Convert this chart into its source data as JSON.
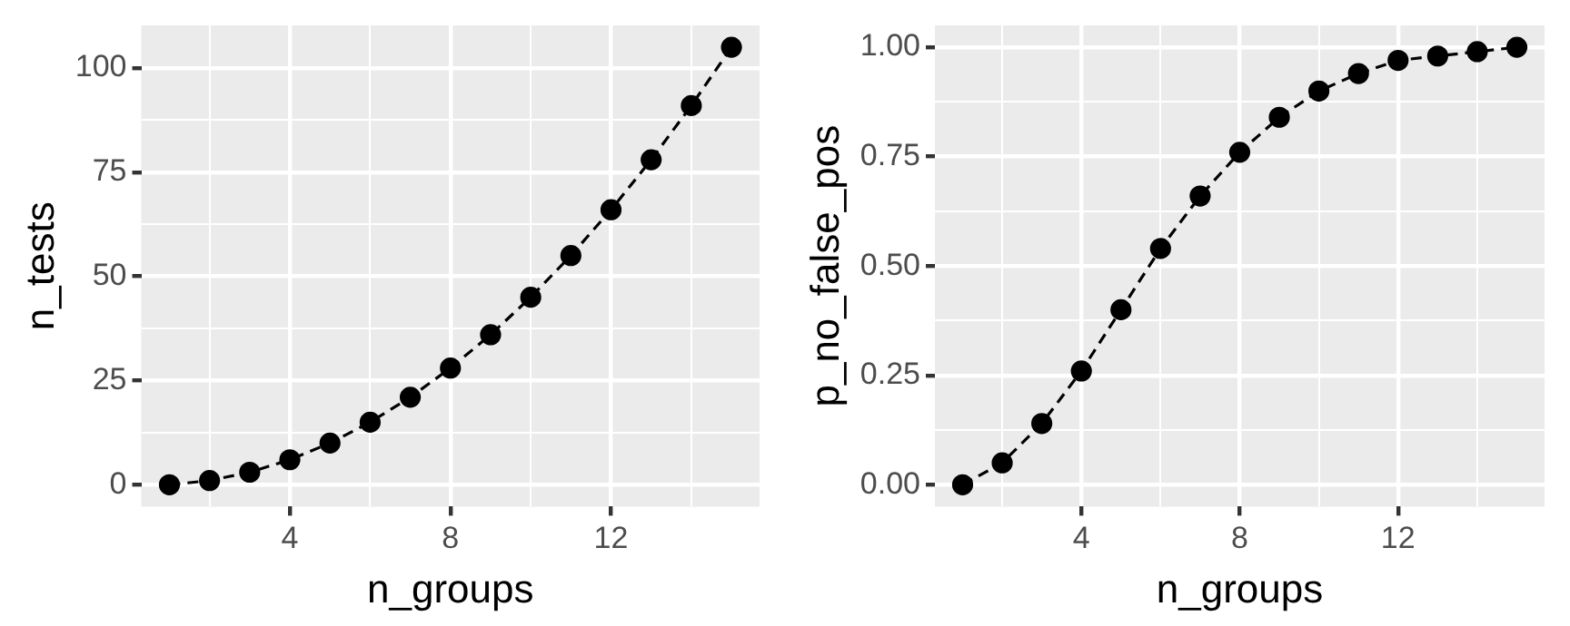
{
  "chart_data": [
    {
      "type": "line",
      "xlabel": "n_groups",
      "ylabel": "n_tests",
      "marker": "circle",
      "line_style": "dashed",
      "grid": true,
      "legend": false,
      "x": [
        1,
        2,
        3,
        4,
        5,
        6,
        7,
        8,
        9,
        10,
        11,
        12,
        13,
        14,
        15
      ],
      "series": [
        {
          "color": "#000000",
          "values": [
            0,
            1,
            3,
            6,
            10,
            15,
            21,
            28,
            36,
            45,
            55,
            66,
            78,
            91,
            105
          ]
        }
      ],
      "xlim": [
        0.3,
        15.7
      ],
      "xticks": [
        {
          "value": 2,
          "label": null
        },
        4,
        {
          "value": 6,
          "label": null
        },
        8,
        {
          "value": 10,
          "label": null
        },
        12,
        {
          "value": 14,
          "label": null
        }
      ],
      "ylim": [
        -5.25,
        110.25
      ],
      "yticks": [
        0,
        {
          "value": 12.5,
          "label": null
        },
        25,
        {
          "value": 37.5,
          "label": null
        },
        50,
        {
          "value": 62.5,
          "label": null
        },
        75,
        {
          "value": 87.5,
          "label": null
        },
        100
      ]
    },
    {
      "type": "line",
      "xlabel": "n_groups",
      "ylabel": "p_no_false_pos",
      "marker": "circle",
      "line_style": "dashed",
      "grid": true,
      "legend": false,
      "x": [
        1,
        2,
        3,
        4,
        5,
        6,
        7,
        8,
        9,
        10,
        11,
        12,
        13,
        14,
        15
      ],
      "series": [
        {
          "color": "#000000",
          "values": [
            0,
            0.05,
            0.14,
            0.26,
            0.4,
            0.54,
            0.66,
            0.76,
            0.84,
            0.9,
            0.94,
            0.97,
            0.98,
            0.99,
            1.0
          ]
        }
      ],
      "xlim": [
        0.3,
        15.7
      ],
      "xticks": [
        {
          "value": 2,
          "label": null
        },
        4,
        {
          "value": 6,
          "label": null
        },
        8,
        {
          "value": 10,
          "label": null
        },
        12,
        {
          "value": 14,
          "label": null
        }
      ],
      "ylim": [
        -0.05,
        1.05
      ],
      "yticks": [
        {
          "value": 0,
          "label": "0.00"
        },
        {
          "value": 0.125,
          "label": null
        },
        {
          "value": 0.25,
          "label": "0.25"
        },
        {
          "value": 0.375,
          "label": null
        },
        {
          "value": 0.5,
          "label": "0.50"
        },
        {
          "value": 0.625,
          "label": null
        },
        {
          "value": 0.75,
          "label": "0.75"
        },
        {
          "value": 0.875,
          "label": null
        },
        {
          "value": 1,
          "label": "1.00"
        }
      ]
    }
  ]
}
